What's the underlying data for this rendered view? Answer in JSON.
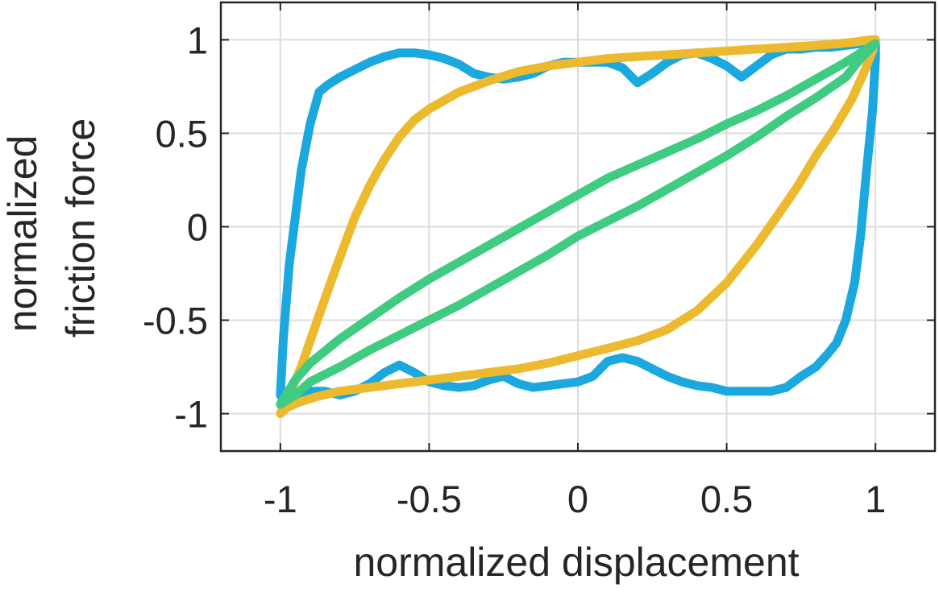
{
  "chart_data": {
    "type": "line",
    "xlabel": "normalized displacement",
    "ylabel_lines": [
      "normalized",
      "friction force"
    ],
    "xlim": [
      -1.2,
      1.2
    ],
    "ylim": [
      -1.2,
      1.2
    ],
    "x_ticks": [
      -1,
      -0.5,
      0,
      0.5,
      1
    ],
    "y_ticks": [
      -1,
      -0.5,
      0,
      0.5,
      1
    ],
    "x_tick_labels": [
      "-1",
      "-0.5",
      "0",
      "0.5",
      "1"
    ],
    "y_tick_labels": [
      "-1",
      "-0.5",
      "0",
      "0.5",
      "1"
    ],
    "grid": true,
    "series": [
      {
        "color": "#1BA8DF",
        "x": [
          -1,
          -0.99,
          -0.97,
          -0.93,
          -0.9,
          -0.87,
          -0.84,
          -0.8,
          -0.75,
          -0.7,
          -0.65,
          -0.6,
          -0.55,
          -0.5,
          -0.45,
          -0.4,
          -0.35,
          -0.3,
          -0.25,
          -0.2,
          -0.15,
          -0.1,
          -0.05,
          0,
          0.05,
          0.1,
          0.15,
          0.2,
          0.25,
          0.3,
          0.35,
          0.4,
          0.45,
          0.5,
          0.55,
          0.6,
          0.65,
          0.7,
          0.75,
          0.8,
          0.85,
          0.9,
          0.95,
          0.98,
          1,
          1,
          0.99,
          0.97,
          0.95,
          0.93,
          0.9,
          0.87,
          0.84,
          0.8,
          0.75,
          0.7,
          0.65,
          0.6,
          0.55,
          0.5,
          0.45,
          0.4,
          0.35,
          0.3,
          0.25,
          0.2,
          0.15,
          0.1,
          0.05,
          0,
          -0.05,
          -0.1,
          -0.15,
          -0.2,
          -0.25,
          -0.3,
          -0.35,
          -0.4,
          -0.45,
          -0.5,
          -0.55,
          -0.6,
          -0.65,
          -0.7,
          -0.75,
          -0.8,
          -0.85,
          -0.9,
          -0.95,
          -0.98,
          -1
        ],
        "y": [
          -0.9,
          -0.6,
          -0.2,
          0.3,
          0.55,
          0.72,
          0.76,
          0.8,
          0.84,
          0.88,
          0.91,
          0.93,
          0.93,
          0.92,
          0.9,
          0.87,
          0.82,
          0.8,
          0.79,
          0.8,
          0.82,
          0.86,
          0.88,
          0.88,
          0.88,
          0.88,
          0.85,
          0.77,
          0.82,
          0.88,
          0.92,
          0.93,
          0.9,
          0.86,
          0.8,
          0.86,
          0.92,
          0.95,
          0.95,
          0.96,
          0.96,
          0.97,
          0.98,
          0.99,
          0.98,
          0.9,
          0.62,
          0.3,
          -0.05,
          -0.3,
          -0.5,
          -0.62,
          -0.68,
          -0.75,
          -0.8,
          -0.86,
          -0.88,
          -0.88,
          -0.88,
          -0.88,
          -0.86,
          -0.85,
          -0.83,
          -0.8,
          -0.76,
          -0.72,
          -0.7,
          -0.72,
          -0.8,
          -0.83,
          -0.84,
          -0.85,
          -0.86,
          -0.84,
          -0.8,
          -0.82,
          -0.85,
          -0.86,
          -0.85,
          -0.83,
          -0.78,
          -0.74,
          -0.78,
          -0.84,
          -0.88,
          -0.9,
          -0.88,
          -0.88,
          -0.92,
          -0.95,
          -0.9
        ]
      },
      {
        "color": "#EDB92E",
        "x": [
          -1,
          -0.97,
          -0.93,
          -0.88,
          -0.82,
          -0.75,
          -0.7,
          -0.65,
          -0.6,
          -0.55,
          -0.5,
          -0.4,
          -0.3,
          -0.2,
          -0.1,
          0,
          0.1,
          0.2,
          0.3,
          0.4,
          0.5,
          0.6,
          0.7,
          0.8,
          0.88,
          0.94,
          0.98,
          1,
          0.99,
          0.96,
          0.92,
          0.86,
          0.8,
          0.74,
          0.68,
          0.6,
          0.5,
          0.4,
          0.3,
          0.2,
          0.1,
          0,
          -0.1,
          -0.2,
          -0.3,
          -0.4,
          -0.5,
          -0.6,
          -0.7,
          -0.8,
          -0.88,
          -0.94,
          -0.98,
          -1
        ],
        "y": [
          -1,
          -0.9,
          -0.75,
          -0.52,
          -0.25,
          0.05,
          0.22,
          0.36,
          0.48,
          0.57,
          0.63,
          0.72,
          0.78,
          0.83,
          0.86,
          0.88,
          0.9,
          0.91,
          0.92,
          0.93,
          0.94,
          0.95,
          0.96,
          0.97,
          0.98,
          0.99,
          1,
          1,
          0.94,
          0.82,
          0.68,
          0.52,
          0.38,
          0.22,
          0.08,
          -0.1,
          -0.3,
          -0.45,
          -0.55,
          -0.61,
          -0.65,
          -0.69,
          -0.73,
          -0.76,
          -0.78,
          -0.8,
          -0.82,
          -0.84,
          -0.86,
          -0.88,
          -0.91,
          -0.94,
          -0.97,
          -1
        ]
      },
      {
        "color": "#3FCB81",
        "x": [
          -1,
          -0.95,
          -0.9,
          -0.8,
          -0.7,
          -0.6,
          -0.5,
          -0.4,
          -0.3,
          -0.2,
          -0.1,
          0,
          0.1,
          0.2,
          0.3,
          0.4,
          0.5,
          0.6,
          0.7,
          0.8,
          0.9,
          0.95,
          1,
          0.95,
          0.9,
          0.8,
          0.7,
          0.6,
          0.5,
          0.4,
          0.3,
          0.2,
          0.1,
          0,
          -0.1,
          -0.2,
          -0.3,
          -0.4,
          -0.5,
          -0.6,
          -0.7,
          -0.8,
          -0.9,
          -0.95,
          -1
        ],
        "y": [
          -0.95,
          -0.82,
          -0.73,
          -0.6,
          -0.49,
          -0.38,
          -0.28,
          -0.19,
          -0.1,
          -0.01,
          0.08,
          0.17,
          0.26,
          0.33,
          0.4,
          0.47,
          0.55,
          0.62,
          0.7,
          0.79,
          0.88,
          0.93,
          0.98,
          0.9,
          0.8,
          0.69,
          0.59,
          0.48,
          0.38,
          0.29,
          0.2,
          0.11,
          0.03,
          -0.05,
          -0.15,
          -0.24,
          -0.33,
          -0.42,
          -0.5,
          -0.58,
          -0.66,
          -0.75,
          -0.83,
          -0.9,
          -0.95
        ]
      }
    ]
  }
}
